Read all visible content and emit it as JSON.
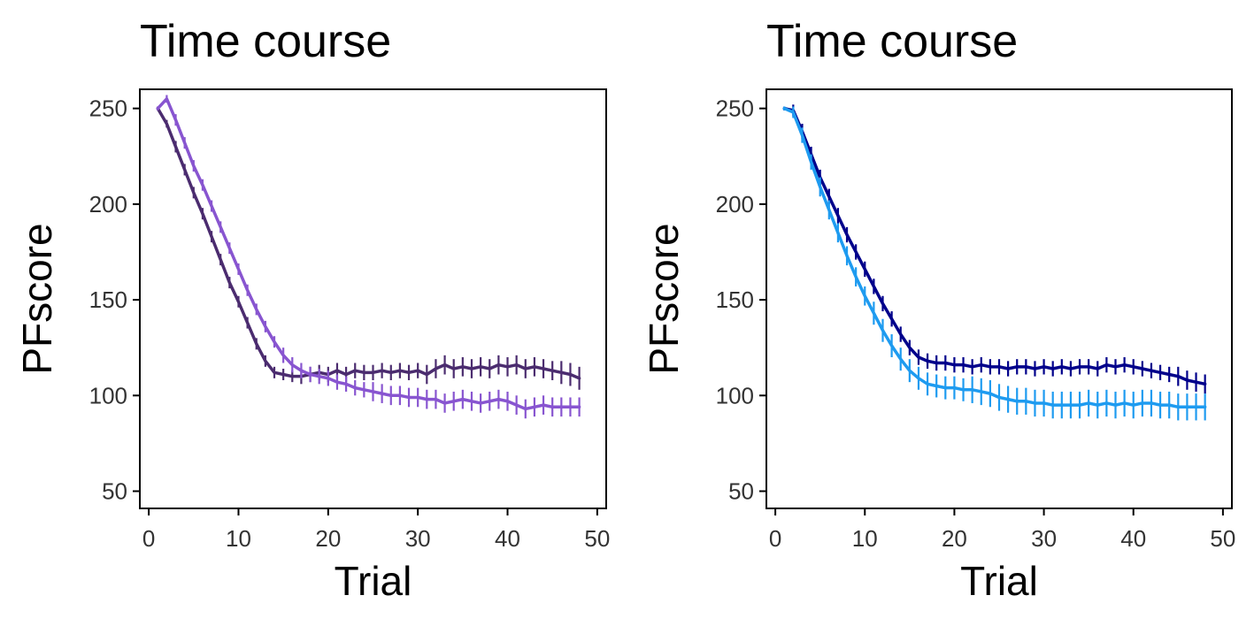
{
  "chart_data": [
    {
      "type": "line",
      "title": "Time course",
      "xlabel": "Trial",
      "ylabel": "PFscore",
      "xlim": [
        -1,
        51
      ],
      "ylim": [
        41,
        260
      ],
      "xticks": [
        0,
        10,
        20,
        30,
        40,
        50
      ],
      "yticks": [
        50,
        100,
        150,
        200,
        250
      ],
      "grid": false,
      "legend": "none",
      "error_bars": true,
      "series": [
        {
          "color": "#4B2C6F",
          "x": [
            1,
            2,
            3,
            4,
            5,
            6,
            7,
            8,
            9,
            10,
            11,
            12,
            13,
            14,
            15,
            16,
            17,
            18,
            19,
            20,
            21,
            22,
            23,
            24,
            25,
            26,
            27,
            28,
            29,
            30,
            31,
            32,
            33,
            34,
            35,
            36,
            37,
            38,
            39,
            40,
            41,
            42,
            43,
            44,
            45,
            46,
            47,
            48
          ],
          "y": [
            250,
            242,
            230,
            218,
            206,
            195,
            183,
            171,
            159,
            149,
            138,
            127,
            118,
            112,
            111,
            110,
            110,
            111,
            112,
            111,
            113,
            111,
            113,
            112,
            112,
            113,
            112,
            113,
            112,
            113,
            111,
            114,
            116,
            114,
            115,
            114,
            115,
            114,
            116,
            115,
            116,
            114,
            115,
            114,
            113,
            112,
            111,
            109
          ],
          "err": [
            1,
            2,
            3,
            3,
            3,
            3,
            3,
            3,
            3,
            3,
            3,
            3,
            3,
            3,
            3,
            3,
            4,
            4,
            4,
            4,
            4,
            4,
            4,
            4,
            4,
            4,
            4,
            4,
            4,
            4,
            5,
            5,
            5,
            5,
            5,
            5,
            5,
            5,
            5,
            5,
            5,
            5,
            5,
            5,
            5,
            6,
            6,
            6
          ]
        },
        {
          "color": "#8855D0",
          "x": [
            1,
            2,
            3,
            4,
            5,
            6,
            7,
            8,
            9,
            10,
            11,
            12,
            13,
            14,
            15,
            16,
            17,
            18,
            19,
            20,
            21,
            22,
            23,
            24,
            25,
            26,
            27,
            28,
            29,
            30,
            31,
            32,
            33,
            34,
            35,
            36,
            37,
            38,
            39,
            40,
            41,
            42,
            43,
            44,
            45,
            46,
            47,
            48
          ],
          "y": [
            250,
            255,
            244,
            232,
            220,
            210,
            199,
            188,
            177,
            166,
            155,
            145,
            136,
            128,
            121,
            116,
            113,
            111,
            110,
            109,
            107,
            106,
            104,
            103,
            102,
            101,
            100,
            100,
            99,
            99,
            98,
            98,
            96,
            97,
            98,
            97,
            96,
            97,
            98,
            97,
            95,
            93,
            94,
            95,
            94,
            94,
            94,
            94
          ],
          "err": [
            1,
            2,
            3,
            3,
            3,
            3,
            3,
            3,
            3,
            3,
            3,
            3,
            3,
            3,
            4,
            4,
            4,
            4,
            4,
            4,
            4,
            4,
            4,
            4,
            5,
            5,
            5,
            5,
            5,
            5,
            5,
            5,
            5,
            5,
            5,
            5,
            5,
            5,
            5,
            5,
            5,
            5,
            5,
            5,
            5,
            5,
            5,
            5
          ]
        }
      ]
    },
    {
      "type": "line",
      "title": "Time course",
      "xlabel": "Trial",
      "ylabel": "PFscore",
      "xlim": [
        -1,
        51
      ],
      "ylim": [
        41,
        260
      ],
      "xticks": [
        0,
        10,
        20,
        30,
        40,
        50
      ],
      "yticks": [
        50,
        100,
        150,
        200,
        250
      ],
      "grid": false,
      "legend": "none",
      "error_bars": true,
      "series": [
        {
          "color": "#00008B",
          "x": [
            1,
            2,
            3,
            4,
            5,
            6,
            7,
            8,
            9,
            10,
            11,
            12,
            13,
            14,
            15,
            16,
            17,
            18,
            19,
            20,
            21,
            22,
            23,
            24,
            25,
            26,
            27,
            28,
            29,
            30,
            31,
            32,
            33,
            34,
            35,
            36,
            37,
            38,
            39,
            40,
            41,
            42,
            43,
            44,
            45,
            46,
            47,
            48
          ],
          "y": [
            250,
            249,
            238,
            226,
            214,
            204,
            194,
            184,
            175,
            166,
            157,
            148,
            140,
            132,
            125,
            120,
            118,
            117,
            117,
            116,
            116,
            115,
            116,
            115,
            115,
            114,
            115,
            115,
            114,
            115,
            114,
            115,
            114,
            115,
            115,
            114,
            116,
            115,
            116,
            115,
            114,
            113,
            112,
            111,
            110,
            108,
            107,
            106
          ],
          "err": [
            1,
            3,
            4,
            4,
            4,
            4,
            4,
            4,
            4,
            4,
            4,
            4,
            4,
            4,
            4,
            4,
            4,
            4,
            4,
            4,
            4,
            4,
            4,
            4,
            4,
            4,
            4,
            4,
            4,
            4,
            4,
            4,
            4,
            4,
            4,
            4,
            4,
            4,
            4,
            4,
            4,
            4,
            4,
            4,
            5,
            5,
            5,
            5
          ]
        },
        {
          "color": "#1E9BF0",
          "x": [
            1,
            2,
            3,
            4,
            5,
            6,
            7,
            8,
            9,
            10,
            11,
            12,
            13,
            14,
            15,
            16,
            17,
            18,
            19,
            20,
            21,
            22,
            23,
            24,
            25,
            26,
            27,
            28,
            29,
            30,
            31,
            32,
            33,
            34,
            35,
            36,
            37,
            38,
            39,
            40,
            41,
            42,
            43,
            44,
            45,
            46,
            47,
            48
          ],
          "y": [
            250,
            248,
            236,
            222,
            209,
            197,
            185,
            173,
            162,
            152,
            143,
            134,
            126,
            119,
            113,
            109,
            106,
            105,
            104,
            104,
            103,
            103,
            102,
            101,
            99,
            98,
            97,
            97,
            96,
            96,
            95,
            95,
            95,
            95,
            96,
            95,
            96,
            95,
            96,
            95,
            96,
            96,
            95,
            95,
            94,
            94,
            94,
            94
          ],
          "err": [
            1,
            3,
            4,
            4,
            5,
            5,
            5,
            5,
            5,
            5,
            6,
            6,
            6,
            6,
            6,
            6,
            6,
            6,
            6,
            6,
            6,
            7,
            7,
            7,
            7,
            7,
            7,
            7,
            7,
            7,
            7,
            7,
            7,
            7,
            7,
            7,
            7,
            7,
            7,
            7,
            7,
            7,
            7,
            7,
            7,
            7,
            7,
            7
          ]
        }
      ]
    }
  ]
}
